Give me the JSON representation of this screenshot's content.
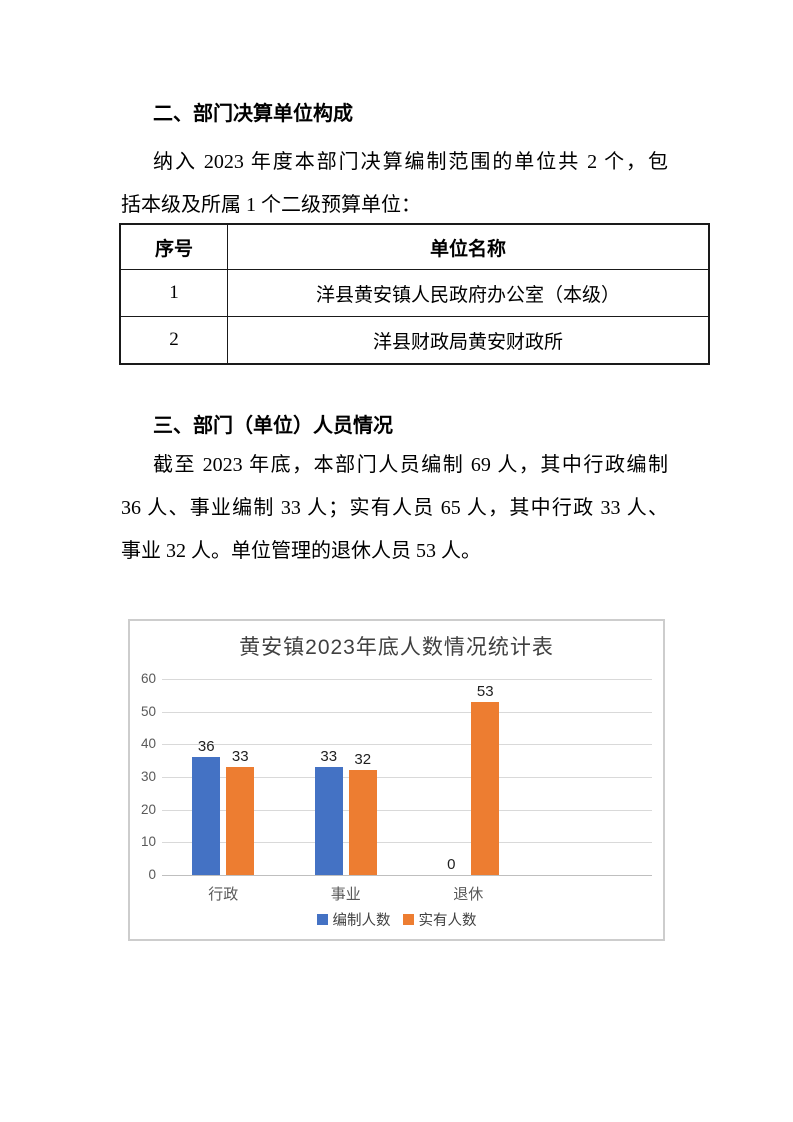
{
  "section2": {
    "heading": "二、部门决算单位构成",
    "para_lines": [
      "纳入 2023 年度本部门决算编制范围的单位共 2 个，包",
      "括本级及所属 1 个二级预算单位："
    ]
  },
  "units_table": {
    "headers": [
      "序号",
      "单位名称"
    ],
    "rows": [
      {
        "no": "1",
        "name": "洋县黄安镇人民政府办公室（本级）"
      },
      {
        "no": "2",
        "name": "洋县财政局黄安财政所"
      }
    ]
  },
  "section3": {
    "heading": "三、部门（单位）人员情况",
    "para_lines": [
      "截至 2023 年底，本部门人员编制 69 人，其中行政编制",
      "36 人、事业编制 33 人；实有人员 65 人，其中行政 33 人、",
      "事业 32 人。单位管理的退休人员 53 人。"
    ]
  },
  "chart_data": {
    "type": "bar",
    "title": "黄安镇2023年底人数情况统计表",
    "categories": [
      "行政",
      "事业",
      "退休"
    ],
    "series": [
      {
        "name": "编制人数",
        "color": "#4472C4",
        "values": [
          36,
          33,
          0
        ]
      },
      {
        "name": "实有人数",
        "color": "#ED7D31",
        "values": [
          33,
          32,
          53
        ]
      }
    ],
    "ylim": [
      0,
      60
    ],
    "ytick_step": 10,
    "grid": true,
    "legend_position": "bottom",
    "colors": {
      "gridline": "#d9d9d9",
      "axis_line": "#bfbfbf",
      "tick_label": "#595959",
      "data_label": "#1f1f1f",
      "title": "#404040"
    }
  }
}
